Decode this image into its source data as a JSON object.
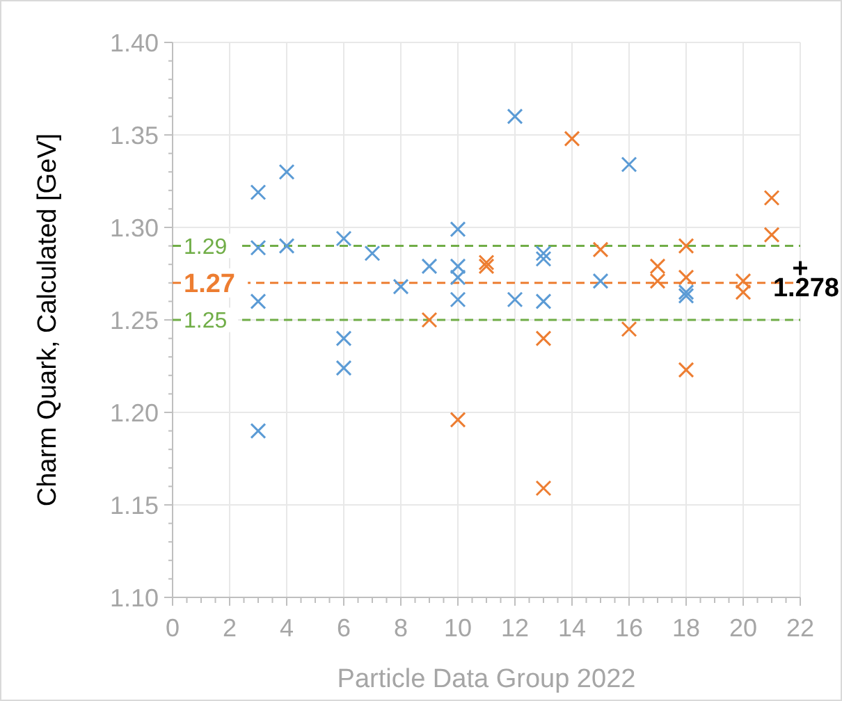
{
  "chart_data": {
    "type": "scatter",
    "xlabel": "Particle Data Group 2022",
    "ylabel": "Charm Quark, Calculated [GeV]",
    "marker": "cross",
    "grid": true,
    "xlim": [
      0,
      22
    ],
    "xticks": [
      0,
      2,
      4,
      6,
      8,
      10,
      12,
      14,
      16,
      18,
      20,
      22
    ],
    "ylim": [
      1.1,
      1.4
    ],
    "yticks": [
      {
        "value": 1.1,
        "label": "1.10"
      },
      {
        "value": 1.15,
        "label": "1.15"
      },
      {
        "value": 1.2,
        "label": "1.20"
      },
      {
        "value": 1.25,
        "label": "1.25"
      },
      {
        "value": 1.3,
        "label": "1.30"
      },
      {
        "value": 1.35,
        "label": "1.35"
      },
      {
        "value": 1.4,
        "label": "1.40"
      }
    ],
    "series": [
      {
        "color": "#5b9bd5",
        "x": [
          3,
          3,
          3,
          3,
          4,
          4,
          6,
          6,
          6,
          7,
          8,
          9,
          10,
          10,
          10,
          10,
          12,
          12,
          13,
          13,
          13,
          15,
          16,
          18,
          18
        ],
        "values": [
          1.319,
          1.289,
          1.26,
          1.19,
          1.33,
          1.29,
          1.294,
          1.24,
          1.224,
          1.286,
          1.268,
          1.279,
          1.299,
          1.279,
          1.273,
          1.261,
          1.36,
          1.261,
          1.286,
          1.283,
          1.26,
          1.271,
          1.334,
          1.265,
          1.263
        ]
      },
      {
        "color": "#ed7d31",
        "x": [
          9,
          10,
          11,
          11,
          13,
          13,
          14,
          15,
          16,
          17,
          17,
          18,
          18,
          18,
          20,
          20,
          21,
          21
        ],
        "values": [
          1.25,
          1.196,
          1.279,
          1.281,
          1.24,
          1.159,
          1.348,
          1.288,
          1.245,
          1.279,
          1.271,
          1.29,
          1.273,
          1.223,
          1.271,
          1.265,
          1.316,
          1.296
        ]
      },
      {
        "color": "#000000",
        "marker": "plus",
        "x": [
          22
        ],
        "values": [
          1.278
        ],
        "value_labels": [
          "1.278"
        ]
      }
    ],
    "ref_lines": [
      {
        "axis": "y",
        "value": 1.29,
        "label": "1.29",
        "color": "#70ad47",
        "line_style": "dashed"
      },
      {
        "axis": "y",
        "value": 1.27,
        "label": "1.27",
        "color": "#ed7d31",
        "line_style": "dashed"
      },
      {
        "axis": "y",
        "value": 1.25,
        "label": "1.25",
        "color": "#70ad47",
        "line_style": "dashed"
      }
    ]
  }
}
